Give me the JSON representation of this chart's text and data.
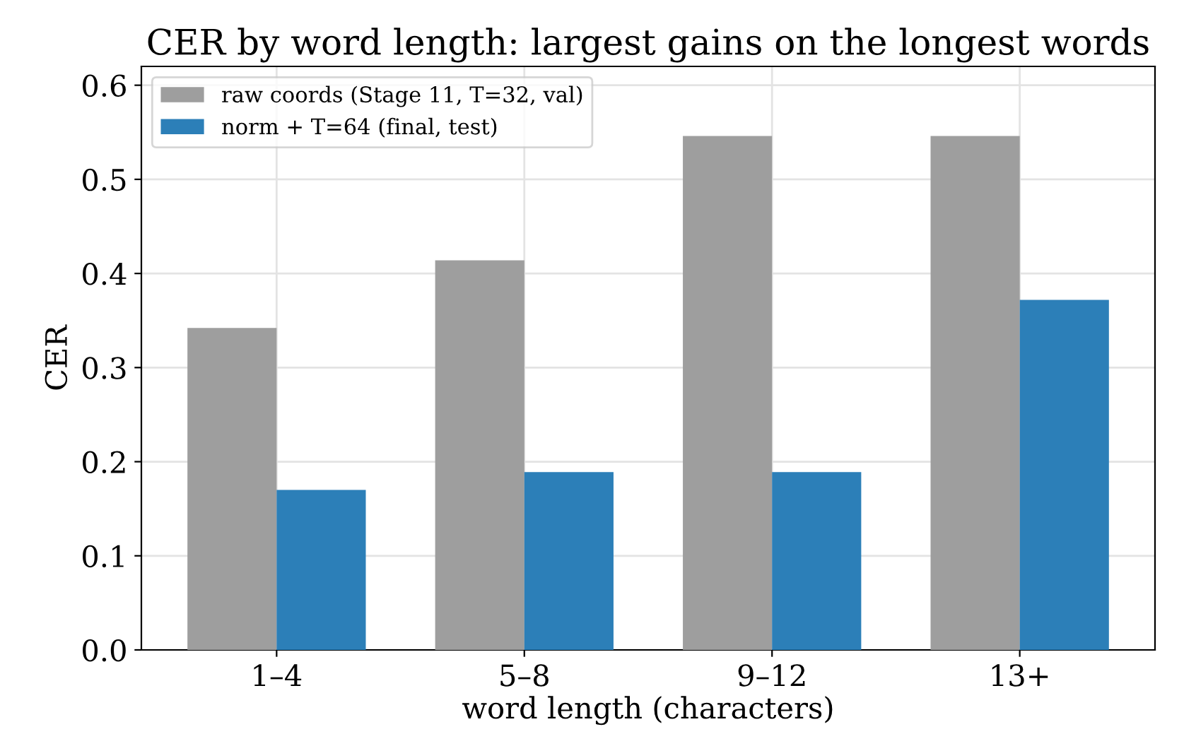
{
  "chart_data": {
    "type": "bar",
    "title": "CER by word length: largest gains on the longest words",
    "xlabel": "word length (characters)",
    "ylabel": "CER",
    "categories": [
      "1–4",
      "5–8",
      "9–12",
      "13+"
    ],
    "series": [
      {
        "name": "raw coords (Stage 11, T=32, val)",
        "color": "#9e9e9e",
        "values": [
          0.342,
          0.414,
          0.546,
          0.546
        ]
      },
      {
        "name": "norm + T=64 (final, test)",
        "color": "#2c7fb8",
        "values": [
          0.17,
          0.189,
          0.189,
          0.372
        ]
      }
    ],
    "ylim": [
      0,
      0.62
    ],
    "yticks": [
      {
        "value": 0,
        "label": "0.0"
      },
      0.1,
      0.2,
      0.3,
      0.4,
      0.5,
      0.6
    ],
    "grid": true,
    "legend": "top left"
  }
}
